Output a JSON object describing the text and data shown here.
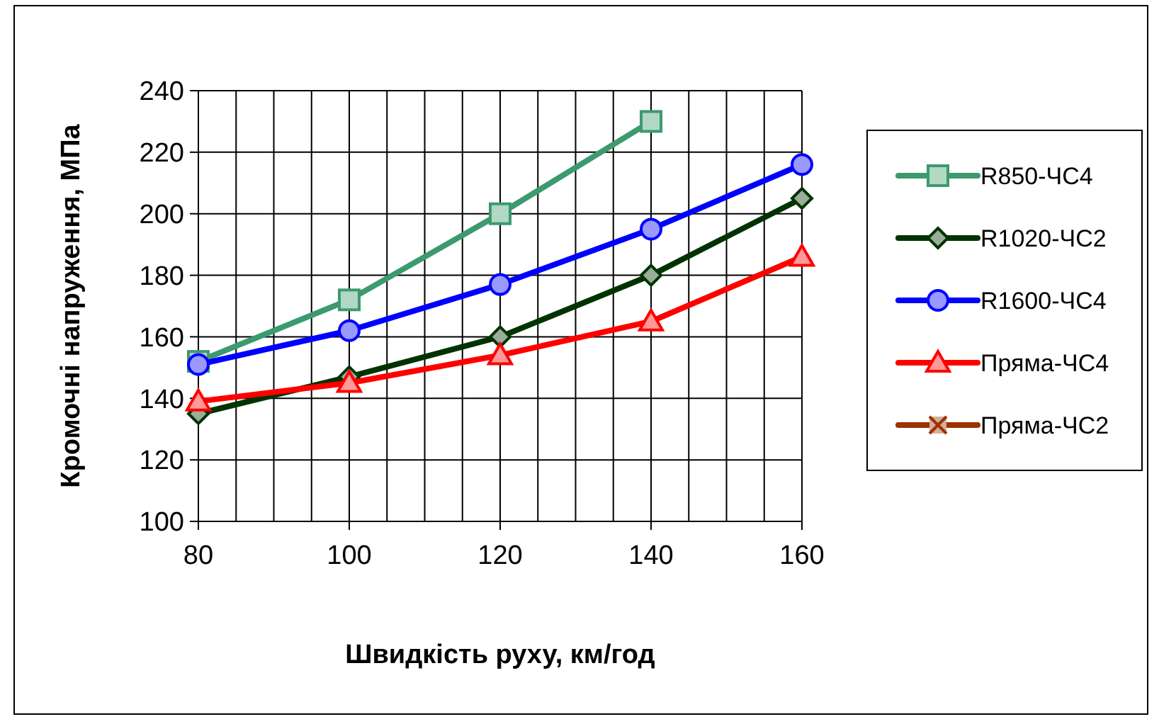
{
  "chart_data": {
    "type": "line",
    "xlabel": "Швидкість руху, км/год",
    "ylabel": "Кромочні напруження, МПа",
    "x": [
      80,
      100,
      120,
      140,
      160
    ],
    "xlim": [
      80,
      160
    ],
    "xticks": [
      80,
      {
        "value": 85,
        "label": null
      },
      {
        "value": 90,
        "label": null
      },
      {
        "value": 95,
        "label": null
      },
      100,
      {
        "value": 105,
        "label": null
      },
      {
        "value": 110,
        "label": null
      },
      {
        "value": 115,
        "label": null
      },
      120,
      {
        "value": 125,
        "label": null
      },
      {
        "value": 130,
        "label": null
      },
      {
        "value": 135,
        "label": null
      },
      140,
      {
        "value": 145,
        "label": null
      },
      {
        "value": 150,
        "label": null
      },
      {
        "value": 155,
        "label": null
      },
      160
    ],
    "ylim": [
      100,
      240
    ],
    "yticks": [
      100,
      120,
      140,
      160,
      180,
      200,
      220,
      240
    ],
    "grid": true,
    "legend": "right",
    "line_style": "solid",
    "series": [
      {
        "name": "R850-ЧС4",
        "color": "#3c9a6e",
        "marker": "square",
        "values": [
          152,
          172,
          200,
          230,
          null
        ]
      },
      {
        "name": "R1020-ЧС2",
        "color": "#003300",
        "marker": "diamond",
        "values": [
          135,
          147,
          160,
          180,
          205
        ]
      },
      {
        "name": "R1600-ЧС4",
        "color": "#0000ff",
        "marker": "circle",
        "values": [
          151,
          162,
          177,
          195,
          216
        ]
      },
      {
        "name": "Пряма-ЧС4",
        "color": "#ff0000",
        "marker": "triangle",
        "values": [
          139,
          145,
          154,
          165,
          186
        ]
      },
      {
        "name": "Пряма-ЧС2",
        "color": "#993300",
        "marker": "cross",
        "values": [
          null,
          null,
          null,
          null,
          null
        ]
      }
    ]
  }
}
